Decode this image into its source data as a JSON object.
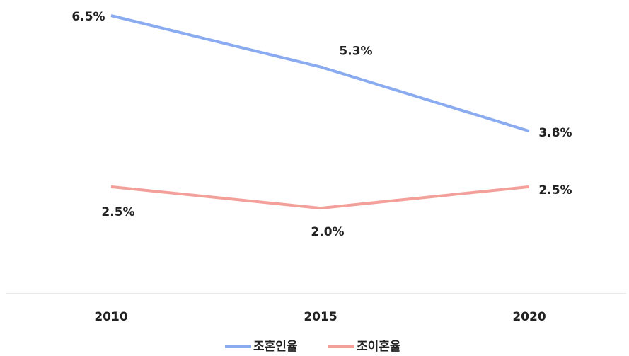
{
  "chart_data": {
    "type": "line",
    "categories": [
      "2010",
      "2015",
      "2020"
    ],
    "series": [
      {
        "name": "조혼인율",
        "color": "#8aabf0",
        "values": [
          6.5,
          5.3,
          3.8
        ],
        "value_labels": [
          "6.5%",
          "5.3%",
          "3.8%"
        ]
      },
      {
        "name": "조이혼율",
        "color": "#f4a09a",
        "values": [
          2.5,
          2.0,
          2.5
        ],
        "value_labels": [
          "2.5%",
          "2.0%",
          "2.5%"
        ]
      }
    ],
    "ylim": [
      0,
      6.5
    ],
    "grid": false
  }
}
